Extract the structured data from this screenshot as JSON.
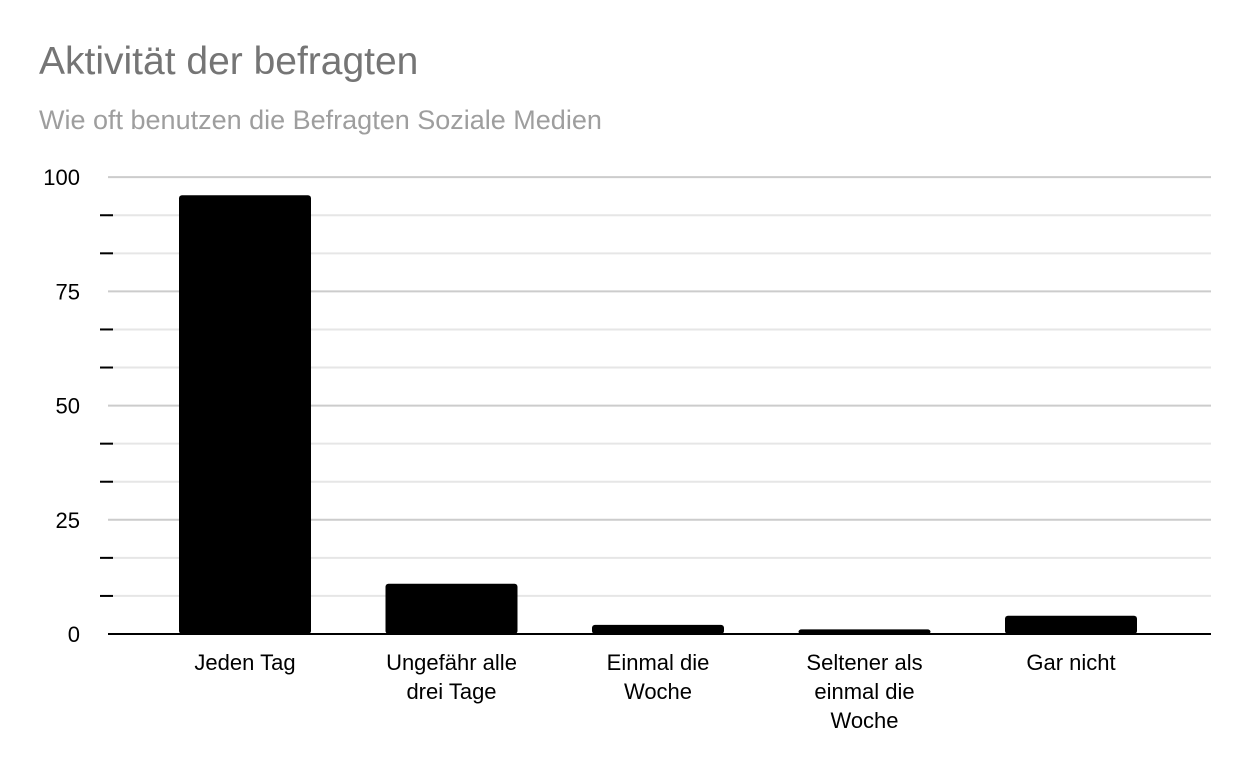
{
  "title": "Aktivität der befragten",
  "subtitle": "Wie oft benutzen die Befragten Soziale Medien",
  "chart_data": {
    "type": "bar",
    "categories": [
      "Jeden Tag",
      "Ungefähr alle drei Tage",
      "Einmal die Woche",
      "Seltener als einmal die Woche",
      "Gar nicht"
    ],
    "category_lines": [
      [
        "Jeden Tag"
      ],
      [
        "Ungefähr alle",
        "drei Tage"
      ],
      [
        "Einmal die",
        "Woche"
      ],
      [
        "Seltener als",
        "einmal die",
        "Woche"
      ],
      [
        "Gar nicht"
      ]
    ],
    "values": [
      96,
      11,
      2,
      1,
      4
    ],
    "ylim": [
      0,
      100
    ],
    "major_ticks": [
      "0",
      "25",
      "50",
      "75",
      "100"
    ],
    "minor_tick_step": 8.33,
    "grid": true,
    "bar_color": "#000000",
    "major_grid_color": "#cccccc",
    "minor_grid_color": "#e6e6e6",
    "xlabel": "",
    "ylabel": ""
  }
}
